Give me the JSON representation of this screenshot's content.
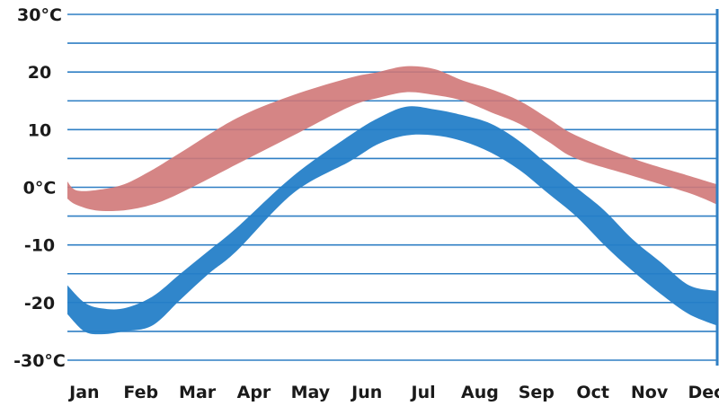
{
  "chart_data": {
    "type": "area",
    "title": "",
    "xlabel": "",
    "ylabel": "",
    "ylim": [
      -30,
      30
    ],
    "y_ticks": [
      {
        "value": 30,
        "label": "30°C"
      },
      {
        "value": 20,
        "label": "20"
      },
      {
        "value": 10,
        "label": "10"
      },
      {
        "value": 0,
        "label": "0°C"
      },
      {
        "value": -10,
        "label": "-10"
      },
      {
        "value": -20,
        "label": "-20"
      },
      {
        "value": -30,
        "label": "-30°C"
      }
    ],
    "categories": [
      "Jan",
      "Feb",
      "Mar",
      "Apr",
      "May",
      "Jun",
      "Jul",
      "Aug",
      "Sep",
      "Oct",
      "Nov",
      "Dec"
    ],
    "grid": true,
    "grid_color": "#2f7fc4",
    "series": [
      {
        "color": "#d07878",
        "x": [
          0,
          0.15,
          0.5,
          1,
          1.5,
          2,
          3,
          4,
          5,
          5.5,
          6,
          6.5,
          7,
          7.5,
          8,
          8.5,
          9,
          10,
          11,
          11.5
        ],
        "upper": [
          1,
          -0.5,
          -0.5,
          0.5,
          3,
          6,
          12,
          16,
          19,
          20,
          21,
          20.5,
          18.5,
          17,
          15,
          12,
          9,
          5,
          2,
          0.5
        ],
        "lower": [
          -2,
          -3,
          -4,
          -4,
          -3,
          -1,
          4,
          9,
          14,
          15.5,
          16.5,
          16,
          15,
          13,
          11,
          8,
          5,
          2,
          -1,
          -3
        ]
      },
      {
        "color": "#2580c8",
        "x": [
          0,
          0.3,
          0.6,
          1,
          1.5,
          2,
          2.5,
          3,
          4,
          5,
          5.5,
          6,
          6.5,
          7,
          7.5,
          8,
          8.5,
          9,
          9.5,
          10,
          10.5,
          11,
          11.5
        ],
        "upper": [
          -17,
          -20,
          -21,
          -21,
          -19,
          -15,
          -11,
          -7,
          2,
          9,
          12,
          14,
          13.5,
          12.5,
          11,
          8,
          4,
          0,
          -4,
          -9,
          -13,
          -17,
          -18
        ],
        "lower": [
          -22,
          -25,
          -25.5,
          -25,
          -24,
          -19.5,
          -15,
          -11,
          -1,
          4.5,
          7.5,
          9,
          9,
          8,
          6,
          3,
          -1,
          -5,
          -10,
          -14.5,
          -18.5,
          -22,
          -24
        ]
      }
    ]
  }
}
